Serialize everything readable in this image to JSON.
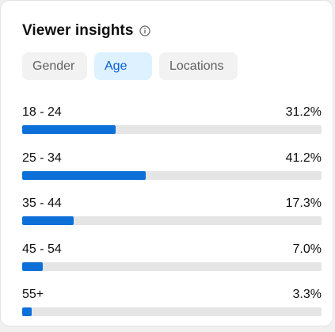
{
  "header": {
    "title": "Viewer insights",
    "info_icon": "info-icon"
  },
  "tabs": [
    {
      "label": "Gender",
      "active": false
    },
    {
      "label": "Age",
      "active": true
    },
    {
      "label": "Locations",
      "active": false
    }
  ],
  "age_breakdown": [
    {
      "label": "18 - 24",
      "value_text": "31.2%",
      "fraction": 0.312
    },
    {
      "label": "25 - 34",
      "value_text": "41.2%",
      "fraction": 0.412
    },
    {
      "label": "35 - 44",
      "value_text": "17.3%",
      "fraction": 0.173
    },
    {
      "label": "45 - 54",
      "value_text": "7.0%",
      "fraction": 0.07
    },
    {
      "label": "55+",
      "value_text": "3.3%",
      "fraction": 0.033
    }
  ],
  "colors": {
    "accent": "#0c70d8",
    "track": "#e5e5e5",
    "active_tab_bg": "#def1ff",
    "active_tab_text": "#065fd4"
  }
}
